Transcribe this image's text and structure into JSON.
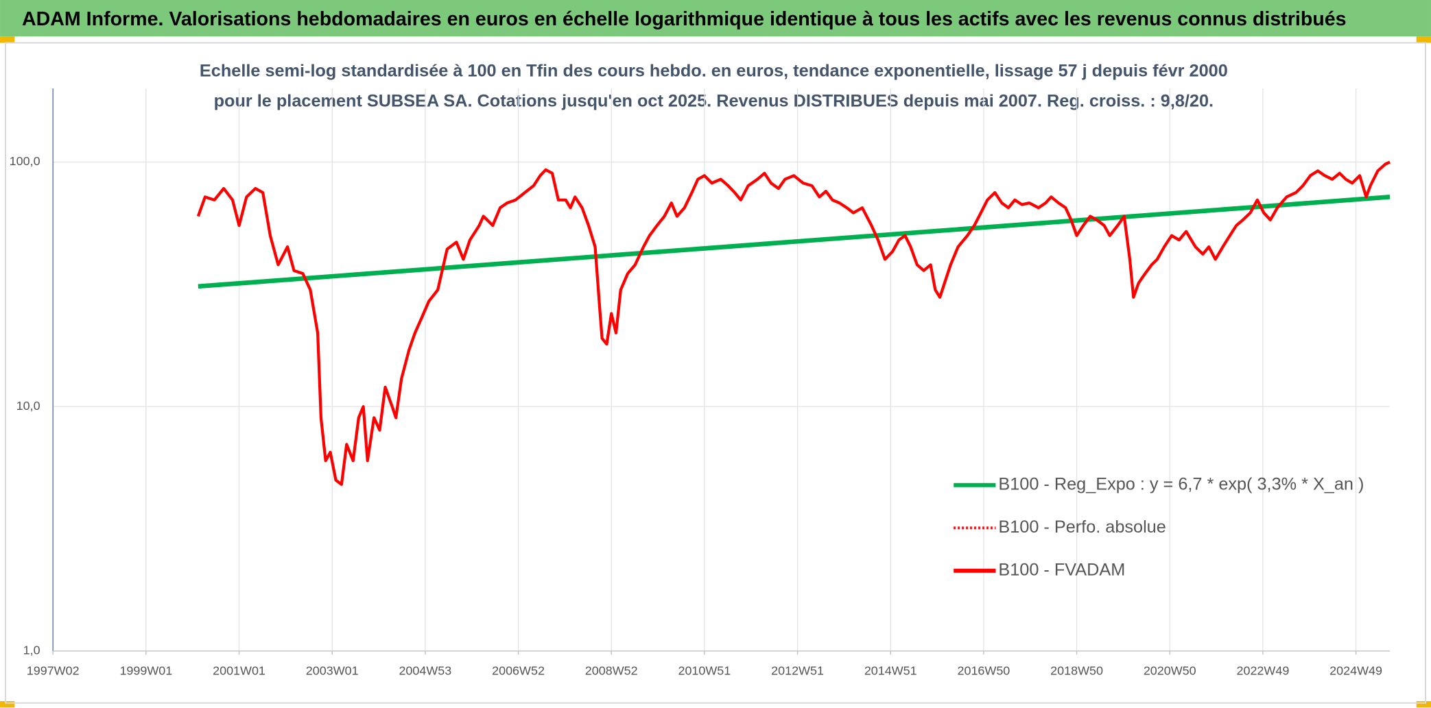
{
  "chart_data": {
    "type": "line",
    "title": "ADAM Informe. Valorisations hebdomadaires en euros en échelle logarithmique identique à tous les actifs avec les revenus connus distribués",
    "subtitle": "Echelle semi-log standardisée à 100 en Tfin des cours hebdo. en euros, tendance exponentielle, lissage 57 j depuis févr 2000 pour le placement SUBSEA SA. Cotations jusqu'en oct 2025. Revenus DISTRIBUES depuis mai 2007. Reg. croiss. : 9,8/20.",
    "log_scale": true,
    "grid": true,
    "legend": "lower right",
    "xlim": [
      1997,
      2025.73
    ],
    "xticks": [
      {
        "value": 1997,
        "label": "1997W02"
      },
      {
        "value": 1999,
        "label": "1999W01"
      },
      {
        "value": 2001,
        "label": "2001W01"
      },
      {
        "value": 2003,
        "label": "2003W01"
      },
      {
        "value": 2005,
        "label": "2004W53"
      },
      {
        "value": 2007,
        "label": "2006W52"
      },
      {
        "value": 2009,
        "label": "2008W52"
      },
      {
        "value": 2011,
        "label": "2010W51"
      },
      {
        "value": 2013,
        "label": "2012W51"
      },
      {
        "value": 2015,
        "label": "2014W51"
      },
      {
        "value": 2017,
        "label": "2016W50"
      },
      {
        "value": 2019,
        "label": "2018W50"
      },
      {
        "value": 2021,
        "label": "2020W50"
      },
      {
        "value": 2023,
        "label": "2022W49"
      },
      {
        "value": 2025,
        "label": "2024W49"
      }
    ],
    "ylim": [
      1,
      200
    ],
    "yticks": [
      {
        "value": 1,
        "label": "1,0"
      },
      {
        "value": 10,
        "label": "10,0"
      },
      {
        "value": 100,
        "label": "100,0"
      }
    ],
    "series": [
      {
        "name": "B100 - Reg_Expo : y = 6,7 * exp( 3,3% *  X_an )",
        "color": "#00b050",
        "style": "solid",
        "x": [
          2000.12,
          2025.73
        ],
        "values": [
          31,
          72
        ]
      },
      {
        "name": "B100 - Perfo. absolue",
        "color": "#ff0000",
        "style": "dotted"
      },
      {
        "name": "B100 - FVADAM",
        "color": "#ff0000",
        "style": "solid",
        "x": [
          2000.12,
          2000.27,
          2000.47,
          2000.67,
          2000.86,
          2001.0,
          2001.16,
          2001.35,
          2001.51,
          2001.67,
          2001.84,
          2002.04,
          2002.18,
          2002.37,
          2002.53,
          2002.69,
          2002.76,
          2002.86,
          2002.96,
          2003.08,
          2003.2,
          2003.31,
          2003.45,
          2003.57,
          2003.67,
          2003.76,
          2003.9,
          2004.02,
          2004.14,
          2004.29,
          2004.37,
          2004.49,
          2004.65,
          2004.78,
          2004.92,
          2005.08,
          2005.27,
          2005.47,
          2005.67,
          2005.82,
          2005.96,
          2006.16,
          2006.25,
          2006.45,
          2006.61,
          2006.76,
          2006.94,
          2007.14,
          2007.33,
          2007.47,
          2007.59,
          2007.73,
          2007.86,
          2008.02,
          2008.12,
          2008.22,
          2008.37,
          2008.51,
          2008.65,
          2008.75,
          2008.8,
          2008.9,
          2009.0,
          2009.1,
          2009.2,
          2009.35,
          2009.51,
          2009.69,
          2009.82,
          2009.98,
          2010.14,
          2010.29,
          2010.41,
          2010.57,
          2010.73,
          2010.86,
          2011.0,
          2011.16,
          2011.35,
          2011.51,
          2011.65,
          2011.78,
          2011.94,
          2012.14,
          2012.29,
          2012.43,
          2012.59,
          2012.73,
          2012.92,
          2013.12,
          2013.31,
          2013.47,
          2013.61,
          2013.75,
          2013.9,
          2014.06,
          2014.2,
          2014.39,
          2014.59,
          2014.73,
          2014.88,
          2015.04,
          2015.18,
          2015.31,
          2015.43,
          2015.57,
          2015.71,
          2015.86,
          2015.96,
          2016.06,
          2016.16,
          2016.29,
          2016.45,
          2016.65,
          2016.8,
          2016.94,
          2017.08,
          2017.24,
          2017.39,
          2017.53,
          2017.67,
          2017.82,
          2017.98,
          2018.18,
          2018.33,
          2018.45,
          2018.61,
          2018.76,
          2018.88,
          2019.0,
          2019.14,
          2019.29,
          2019.43,
          2019.59,
          2019.71,
          2019.88,
          2020.02,
          2020.14,
          2020.22,
          2020.33,
          2020.47,
          2020.61,
          2020.73,
          2020.88,
          2021.04,
          2021.2,
          2021.35,
          2021.55,
          2021.71,
          2021.84,
          2021.98,
          2022.14,
          2022.29,
          2022.43,
          2022.57,
          2022.73,
          2022.88,
          2023.02,
          2023.16,
          2023.31,
          2023.51,
          2023.71,
          2023.86,
          2024.02,
          2024.18,
          2024.33,
          2024.49,
          2024.65,
          2024.78,
          2024.92,
          2025.08,
          2025.22,
          2025.31,
          2025.47,
          2025.63,
          2025.73
        ],
        "values": [
          60,
          72,
          70,
          78,
          70,
          55,
          72,
          78,
          75,
          50,
          38,
          45,
          36,
          35,
          30,
          20,
          9,
          6,
          6.5,
          5,
          4.8,
          7,
          6,
          9,
          10,
          6,
          9,
          8,
          12,
          10,
          9,
          13,
          17,
          20,
          23,
          27,
          30,
          44,
          47,
          40,
          48,
          55,
          60,
          55,
          65,
          68,
          70,
          75,
          80,
          88,
          93,
          90,
          70,
          70,
          65,
          72,
          65,
          55,
          45,
          25,
          19,
          18,
          24,
          20,
          30,
          35,
          38,
          45,
          50,
          55,
          60,
          68,
          60,
          65,
          75,
          85,
          88,
          82,
          85,
          80,
          75,
          70,
          80,
          85,
          90,
          82,
          78,
          85,
          88,
          82,
          80,
          72,
          76,
          70,
          68,
          65,
          62,
          65,
          55,
          48,
          40,
          43,
          48,
          50,
          45,
          38,
          36,
          38,
          30,
          28,
          32,
          38,
          45,
          50,
          55,
          62,
          70,
          75,
          68,
          65,
          70,
          67,
          68,
          65,
          68,
          72,
          68,
          65,
          58,
          50,
          55,
          60,
          58,
          55,
          50,
          55,
          60,
          40,
          28,
          32,
          35,
          38,
          40,
          45,
          50,
          48,
          52,
          45,
          42,
          45,
          40,
          45,
          50,
          55,
          58,
          62,
          70,
          62,
          58,
          65,
          72,
          75,
          80,
          88,
          92,
          88,
          85,
          90,
          85,
          82,
          88,
          72,
          80,
          92,
          98,
          100
        ]
      }
    ]
  }
}
